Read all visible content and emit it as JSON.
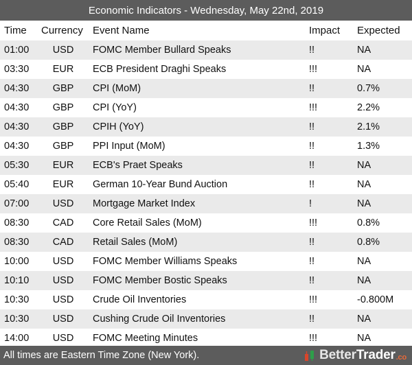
{
  "title": "Economic Indicators - Wednesday, May 22nd, 2019",
  "columns": {
    "time": "Time",
    "currency": "Currency",
    "event": "Event Name",
    "impact": "Impact",
    "expected": "Expected"
  },
  "rows": [
    {
      "time": "01:00",
      "currency": "USD",
      "event": "FOMC Member Bullard Speaks",
      "impact": "!!",
      "expected": "NA"
    },
    {
      "time": "03:30",
      "currency": "EUR",
      "event": "ECB President Draghi Speaks",
      "impact": "!!!",
      "expected": "NA"
    },
    {
      "time": "04:30",
      "currency": "GBP",
      "event": "CPI (MoM)",
      "impact": "!!",
      "expected": "0.7%"
    },
    {
      "time": "04:30",
      "currency": "GBP",
      "event": "CPI (YoY)",
      "impact": "!!!",
      "expected": "2.2%"
    },
    {
      "time": "04:30",
      "currency": "GBP",
      "event": "CPIH (YoY)",
      "impact": "!!",
      "expected": "2.1%"
    },
    {
      "time": "04:30",
      "currency": "GBP",
      "event": "PPI Input (MoM)",
      "impact": "!!",
      "expected": "1.3%"
    },
    {
      "time": "05:30",
      "currency": "EUR",
      "event": "ECB's Praet Speaks",
      "impact": "!!",
      "expected": "NA"
    },
    {
      "time": "05:40",
      "currency": "EUR",
      "event": "German 10-Year Bund Auction",
      "impact": "!!",
      "expected": "NA"
    },
    {
      "time": "07:00",
      "currency": "USD",
      "event": "Mortgage Market Index",
      "impact": "!",
      "expected": "NA"
    },
    {
      "time": "08:30",
      "currency": "CAD",
      "event": "Core Retail Sales (MoM)",
      "impact": "!!!",
      "expected": "0.8%"
    },
    {
      "time": "08:30",
      "currency": "CAD",
      "event": "Retail Sales (MoM)",
      "impact": "!!",
      "expected": "0.8%"
    },
    {
      "time": "10:00",
      "currency": "USD",
      "event": "FOMC Member Williams Speaks",
      "impact": "!!",
      "expected": "NA"
    },
    {
      "time": "10:10",
      "currency": "USD",
      "event": "FOMC Member Bostic Speaks",
      "impact": "!!",
      "expected": "NA"
    },
    {
      "time": "10:30",
      "currency": "USD",
      "event": "Crude Oil Inventories",
      "impact": "!!!",
      "expected": "-0.800M"
    },
    {
      "time": "10:30",
      "currency": "USD",
      "event": "Cushing Crude Oil Inventories",
      "impact": "!!",
      "expected": "NA"
    },
    {
      "time": "14:00",
      "currency": "USD",
      "event": "FOMC Meeting Minutes",
      "impact": "!!!",
      "expected": "NA"
    }
  ],
  "footer": {
    "note": "All times are Eastern Time Zone (New York).",
    "brand_part1": "Better",
    "brand_part2": "Trader",
    "brand_tld": ".co",
    "logo_icon": "bettertrader-logo-icon"
  },
  "colors": {
    "bar_bg": "#5c5c5c",
    "row_alt": "#eaeaea",
    "logo_green": "#2e9e4a",
    "logo_red": "#d9452b",
    "tld_orange": "#e86a3a"
  }
}
